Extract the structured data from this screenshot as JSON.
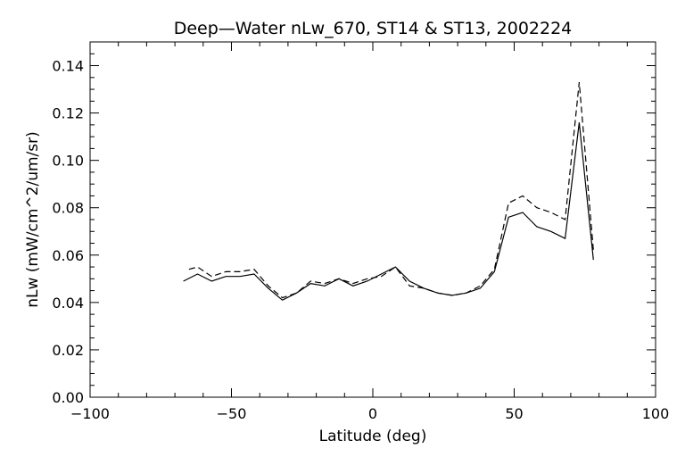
{
  "chart_data": {
    "type": "line",
    "title": "Deep—Water nLw_670, ST14 & ST13, 2002224",
    "xlabel": "Latitude (deg)",
    "ylabel": "nLw (mW/cm^2/um/sr)",
    "xlim": [
      -100,
      100
    ],
    "ylim": [
      0.0,
      0.15
    ],
    "x_ticks": [
      -100,
      -50,
      0,
      50,
      100
    ],
    "x_tick_labels": [
      "−100",
      "−50",
      "0",
      "50",
      "100"
    ],
    "y_ticks": [
      0.0,
      0.02,
      0.04,
      0.06,
      0.08,
      0.1,
      0.12,
      0.14
    ],
    "y_tick_labels": [
      "0.00",
      "0.02",
      "0.04",
      "0.06",
      "0.08",
      "0.10",
      "0.12",
      "0.14"
    ],
    "grid": false,
    "series": [
      {
        "style": "solid",
        "color": "#000000",
        "x": [
          -67,
          -62,
          -57,
          -52,
          -47,
          -42,
          -37,
          -32,
          -27,
          -22,
          -17,
          -12,
          -7,
          -2,
          3,
          8,
          13,
          18,
          23,
          28,
          33,
          38,
          43,
          48,
          53,
          58,
          63,
          68,
          73,
          78
        ],
        "y": [
          0.049,
          0.052,
          0.049,
          0.051,
          0.051,
          0.052,
          0.046,
          0.041,
          0.044,
          0.048,
          0.047,
          0.05,
          0.047,
          0.049,
          0.052,
          0.055,
          0.049,
          0.046,
          0.044,
          0.043,
          0.044,
          0.046,
          0.053,
          0.076,
          0.078,
          0.072,
          0.07,
          0.067,
          0.116,
          0.058
        ]
      },
      {
        "style": "dashed",
        "color": "#000000",
        "x": [
          -65,
          -62,
          -57,
          -52,
          -47,
          -42,
          -37,
          -32,
          -27,
          -22,
          -17,
          -12,
          -7,
          -2,
          3,
          8,
          13,
          18,
          23,
          28,
          33,
          38,
          43,
          48,
          53,
          58,
          63,
          68,
          73,
          78
        ],
        "y": [
          0.054,
          0.055,
          0.051,
          0.053,
          0.053,
          0.054,
          0.047,
          0.042,
          0.044,
          0.049,
          0.048,
          0.05,
          0.048,
          0.05,
          0.051,
          0.055,
          0.047,
          0.046,
          0.044,
          0.043,
          0.044,
          0.047,
          0.054,
          0.082,
          0.085,
          0.08,
          0.078,
          0.075,
          0.133,
          0.062
        ]
      }
    ]
  }
}
